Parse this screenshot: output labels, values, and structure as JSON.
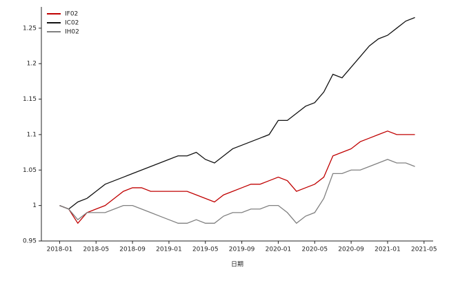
{
  "chart_data": {
    "type": "line",
    "x_label": "日期",
    "x": [
      "2018-01",
      "2018-02",
      "2018-03",
      "2018-04",
      "2018-05",
      "2018-06",
      "2018-07",
      "2018-08",
      "2018-09",
      "2018-10",
      "2018-11",
      "2018-12",
      "2019-01",
      "2019-02",
      "2019-03",
      "2019-04",
      "2019-05",
      "2019-06",
      "2019-07",
      "2019-08",
      "2019-09",
      "2019-10",
      "2019-11",
      "2019-12",
      "2020-01",
      "2020-02",
      "2020-03",
      "2020-04",
      "2020-05",
      "2020-06",
      "2020-07",
      "2020-08",
      "2020-09",
      "2020-10",
      "2020-11",
      "2020-12",
      "2021-01",
      "2021-02",
      "2021-03",
      "2021-04"
    ],
    "series": [
      {
        "name": "IF02",
        "color": "#c00000",
        "values": [
          1.0,
          0.995,
          0.975,
          0.99,
          0.995,
          1.0,
          1.01,
          1.02,
          1.025,
          1.025,
          1.02,
          1.02,
          1.02,
          1.02,
          1.02,
          1.015,
          1.01,
          1.005,
          1.015,
          1.02,
          1.025,
          1.03,
          1.03,
          1.035,
          1.04,
          1.035,
          1.02,
          1.025,
          1.03,
          1.04,
          1.07,
          1.075,
          1.08,
          1.09,
          1.095,
          1.1,
          1.105,
          1.1,
          1.1,
          1.1
        ]
      },
      {
        "name": "IC02",
        "color": "#111111",
        "values": [
          1.0,
          0.995,
          1.005,
          1.01,
          1.02,
          1.03,
          1.035,
          1.04,
          1.045,
          1.05,
          1.055,
          1.06,
          1.065,
          1.07,
          1.07,
          1.075,
          1.065,
          1.06,
          1.07,
          1.08,
          1.085,
          1.09,
          1.095,
          1.1,
          1.12,
          1.12,
          1.13,
          1.14,
          1.145,
          1.16,
          1.185,
          1.18,
          1.195,
          1.21,
          1.225,
          1.235,
          1.24,
          1.25,
          1.26,
          1.265
        ]
      },
      {
        "name": "IH02",
        "color": "#808080",
        "values": [
          1.0,
          0.995,
          0.98,
          0.99,
          0.99,
          0.99,
          0.995,
          1.0,
          1.0,
          0.995,
          0.99,
          0.985,
          0.98,
          0.975,
          0.975,
          0.98,
          0.975,
          0.975,
          0.985,
          0.99,
          0.99,
          0.995,
          0.995,
          1.0,
          1.0,
          0.99,
          0.975,
          0.985,
          0.99,
          1.01,
          1.045,
          1.045,
          1.05,
          1.05,
          1.055,
          1.06,
          1.065,
          1.06,
          1.06,
          1.055
        ]
      }
    ],
    "xlim": [
      "2017-11",
      "2021-06"
    ],
    "xticks": [
      "2018-01",
      "2018-05",
      "2018-09",
      "2019-01",
      "2019-05",
      "2019-09",
      "2020-01",
      "2020-05",
      "2020-09",
      "2021-01",
      "2021-05"
    ],
    "ylim": [
      0.95,
      1.28
    ],
    "yticks": [
      0.95,
      1.0,
      1.05,
      1.1,
      1.15,
      1.2,
      1.25
    ],
    "legend": "upper left"
  }
}
